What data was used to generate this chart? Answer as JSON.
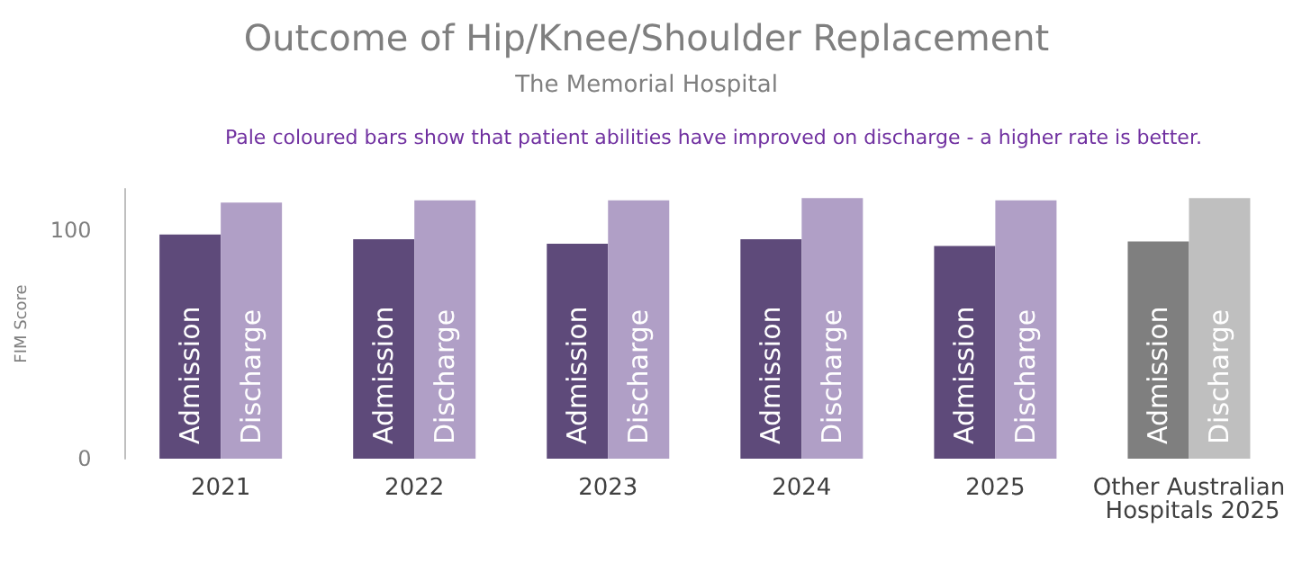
{
  "chart_data": {
    "type": "bar",
    "title": "Outcome of Hip/Knee/Shoulder Replacement",
    "subtitle": "The Memorial Hospital",
    "annotations": [
      "Pale coloured bars show that patient abilities have improved on discharge - a higher rate is better."
    ],
    "ylabel": "FIM Score",
    "categories": [
      "2021",
      "2022",
      "2023",
      "2024",
      "2025",
      "Other Australian Hospitals 2025"
    ],
    "series": [
      {
        "name": "Admission",
        "colors": [
          "#5e4a7a",
          "#5e4a7a",
          "#5e4a7a",
          "#5e4a7a",
          "#5e4a7a",
          "#7f7f7f"
        ],
        "values": [
          98,
          96,
          94,
          96,
          93,
          95
        ]
      },
      {
        "name": "Discharge",
        "colors": [
          "#b09fc6",
          "#b09fc6",
          "#b09fc6",
          "#b09fc6",
          "#b09fc6",
          "#bfbfbf"
        ],
        "values": [
          112,
          113,
          113,
          114,
          113,
          114
        ]
      }
    ],
    "ylim": [
      0,
      118
    ],
    "yticks": [
      0,
      100
    ]
  }
}
